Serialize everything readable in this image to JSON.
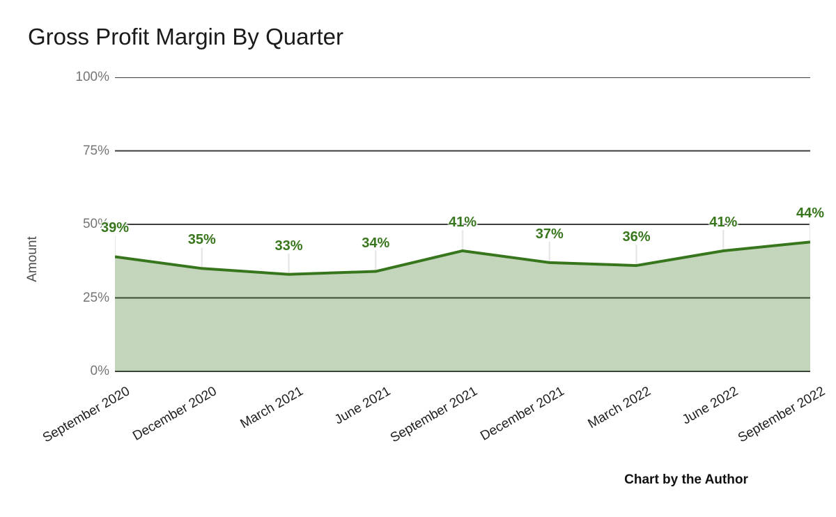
{
  "chart_data": {
    "type": "area",
    "title": "Gross Profit Margin By Quarter",
    "ylabel": "Amount",
    "xlabel": "",
    "footnote": "Chart by the Author",
    "categories": [
      "September 2020",
      "December 2020",
      "March 2021",
      "June 2021",
      "September 2021",
      "December 2021",
      "March 2022",
      "June 2022",
      "September 2022"
    ],
    "values": [
      39,
      35,
      33,
      34,
      41,
      37,
      36,
      41,
      44
    ],
    "data_labels": [
      "39%",
      "35%",
      "33%",
      "34%",
      "41%",
      "37%",
      "36%",
      "41%",
      "44%"
    ],
    "y_ticks": [
      {
        "value": 0,
        "label": "0%"
      },
      {
        "value": 25,
        "label": "25%"
      },
      {
        "value": 50,
        "label": "50%"
      },
      {
        "value": 75,
        "label": "75%"
      },
      {
        "value": 100,
        "label": "100%"
      }
    ],
    "ylim": [
      0,
      100
    ],
    "grid": true,
    "legend": "none",
    "colors": {
      "line": "#38761d",
      "area_fill": "rgba(56,118,29,0.30)",
      "data_label": "#38761d",
      "gridline": "#3c3c3c",
      "y_axis_text": "#757575",
      "x_axis_text": "#1f1f1f",
      "callout_tick": "#e8e8e8",
      "background": "#ffffff",
      "title_text": "#1a1a1a"
    }
  }
}
